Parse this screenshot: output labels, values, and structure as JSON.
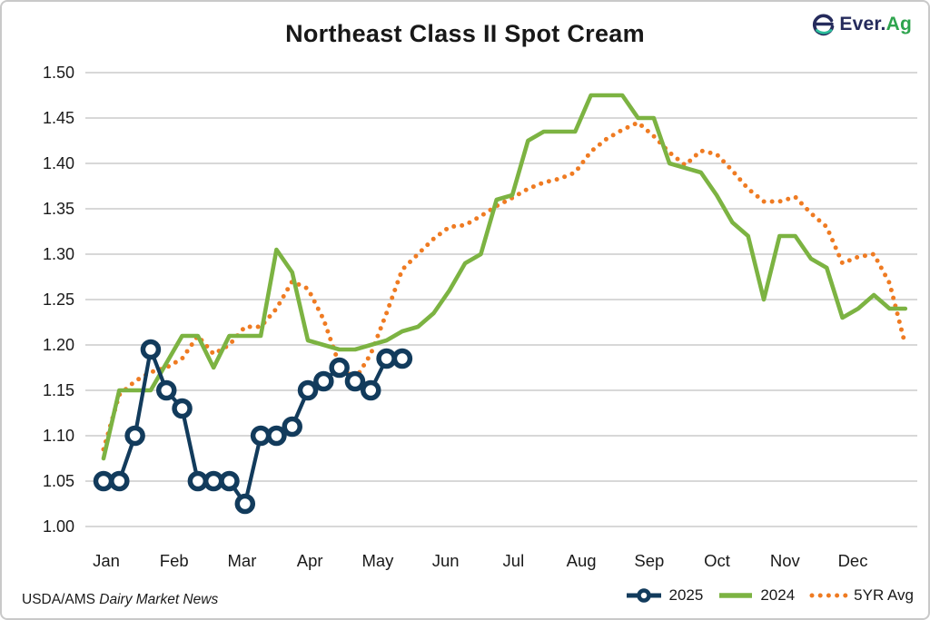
{
  "header": {
    "logo_prefix": "Ever.",
    "logo_suffix": "Ag"
  },
  "footer": {
    "source_plain": "USDA/AMS",
    "source_italic": "Dairy Market News"
  },
  "colors": {
    "navy": "#123B5C",
    "green": "#7CB342",
    "orange": "#EF7B22",
    "grid": "#cccccc",
    "text": "#1a1a1a",
    "logo_navy": "#252B5C",
    "logo_green": "#2EA44E",
    "logo_teal": "#2BBD9B",
    "background": "#ffffff"
  },
  "chart_data": {
    "type": "line",
    "title": "Northeast Class II Spot Cream",
    "xlabel": "",
    "ylabel": "",
    "x_unit": "weekly",
    "months": [
      "Jan",
      "Feb",
      "Mar",
      "Apr",
      "May",
      "Jun",
      "Jul",
      "Aug",
      "Sep",
      "Oct",
      "Nov",
      "Dec"
    ],
    "ylim": [
      1.0,
      1.5
    ],
    "y_tick_labels": [
      "1.00",
      "1.05",
      "1.10",
      "1.15",
      "1.20",
      "1.25",
      "1.30",
      "1.35",
      "1.40",
      "1.45",
      "1.50"
    ],
    "grid": "horizontal-only",
    "legend_position": "bottom-right",
    "series": [
      {
        "name": "2025",
        "color": "#123B5C",
        "style": "solid",
        "marker": "open-circle",
        "values": [
          1.05,
          1.05,
          1.1,
          1.195,
          1.15,
          1.13,
          1.05,
          1.05,
          1.05,
          1.025,
          1.1,
          1.1,
          1.11,
          1.15,
          1.16,
          1.175,
          1.16,
          1.15,
          1.185,
          1.185
        ]
      },
      {
        "name": "2024",
        "color": "#7CB342",
        "style": "solid",
        "marker": "none",
        "values": [
          1.075,
          1.15,
          1.15,
          1.15,
          1.18,
          1.21,
          1.21,
          1.175,
          1.21,
          1.21,
          1.21,
          1.305,
          1.28,
          1.205,
          1.2,
          1.195,
          1.195,
          1.2,
          1.205,
          1.215,
          1.22,
          1.235,
          1.26,
          1.29,
          1.3,
          1.36,
          1.365,
          1.425,
          1.435,
          1.435,
          1.435,
          1.475,
          1.475,
          1.475,
          1.45,
          1.45,
          1.4,
          1.395,
          1.39,
          1.365,
          1.335,
          1.32,
          1.25,
          1.32,
          1.32,
          1.295,
          1.285,
          1.23,
          1.24,
          1.255,
          1.24,
          1.24
        ]
      },
      {
        "name": "5YR Avg",
        "color": "#EF7B22",
        "style": "dotted",
        "marker": "none",
        "values": [
          1.085,
          1.145,
          1.16,
          1.17,
          1.175,
          1.185,
          1.21,
          1.19,
          1.2,
          1.22,
          1.22,
          1.24,
          1.27,
          1.262,
          1.228,
          1.178,
          1.162,
          1.19,
          1.235,
          1.283,
          1.3,
          1.317,
          1.33,
          1.332,
          1.342,
          1.353,
          1.362,
          1.372,
          1.379,
          1.383,
          1.39,
          1.413,
          1.427,
          1.437,
          1.445,
          1.43,
          1.412,
          1.398,
          1.414,
          1.41,
          1.392,
          1.372,
          1.358,
          1.358,
          1.363,
          1.345,
          1.33,
          1.29,
          1.297,
          1.3,
          1.268,
          1.2
        ]
      }
    ]
  }
}
